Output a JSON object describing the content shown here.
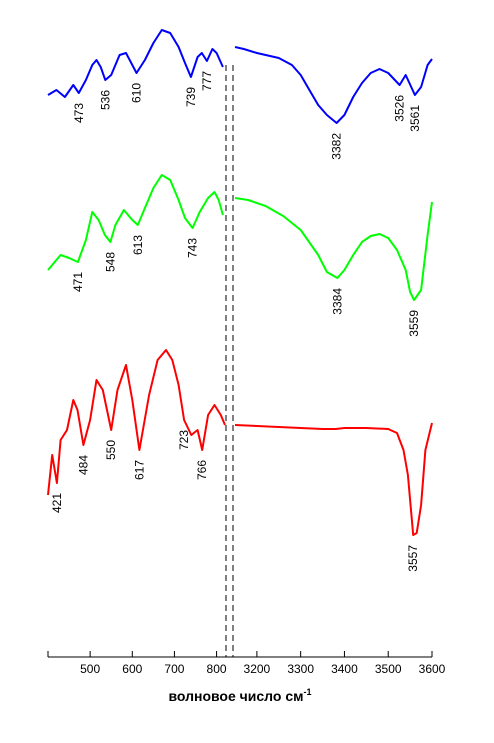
{
  "chart_data": {
    "type": "line",
    "xlabel": "волновое число см",
    "xlabel_superscript": "-1",
    "axis_break": "dashed",
    "grid": false,
    "legend": "none",
    "segments": [
      {
        "xlim": [
          400,
          820
        ],
        "ticks": [
          500,
          600,
          700,
          800
        ]
      },
      {
        "xlim": [
          3150,
          3600
        ],
        "ticks": [
          3200,
          3300,
          3400,
          3500,
          3600
        ]
      }
    ],
    "series": [
      {
        "color": "#0000ff",
        "points_low": [
          [
            400,
            0.4
          ],
          [
            420,
            0.45
          ],
          [
            440,
            0.38
          ],
          [
            460,
            0.5
          ],
          [
            473,
            0.42
          ],
          [
            490,
            0.55
          ],
          [
            505,
            0.7
          ],
          [
            515,
            0.75
          ],
          [
            525,
            0.68
          ],
          [
            536,
            0.55
          ],
          [
            550,
            0.6
          ],
          [
            570,
            0.8
          ],
          [
            585,
            0.82
          ],
          [
            600,
            0.7
          ],
          [
            610,
            0.62
          ],
          [
            630,
            0.75
          ],
          [
            650,
            0.92
          ],
          [
            670,
            1.05
          ],
          [
            690,
            1.02
          ],
          [
            710,
            0.88
          ],
          [
            725,
            0.72
          ],
          [
            739,
            0.58
          ],
          [
            755,
            0.78
          ],
          [
            765,
            0.82
          ],
          [
            777,
            0.74
          ],
          [
            790,
            0.86
          ],
          [
            800,
            0.82
          ],
          [
            815,
            0.68
          ]
        ],
        "points_high": [
          [
            3150,
            0.88
          ],
          [
            3170,
            0.86
          ],
          [
            3200,
            0.82
          ],
          [
            3250,
            0.77
          ],
          [
            3280,
            0.7
          ],
          [
            3300,
            0.6
          ],
          [
            3320,
            0.45
          ],
          [
            3340,
            0.3
          ],
          [
            3360,
            0.2
          ],
          [
            3382,
            0.12
          ],
          [
            3400,
            0.2
          ],
          [
            3420,
            0.38
          ],
          [
            3440,
            0.52
          ],
          [
            3460,
            0.62
          ],
          [
            3480,
            0.66
          ],
          [
            3500,
            0.62
          ],
          [
            3526,
            0.5
          ],
          [
            3540,
            0.6
          ],
          [
            3561,
            0.4
          ],
          [
            3575,
            0.48
          ],
          [
            3590,
            0.7
          ],
          [
            3600,
            0.76
          ]
        ],
        "peak_labels": [
          473,
          536,
          610,
          739,
          777,
          3382,
          3526,
          3561
        ]
      },
      {
        "color": "#00ff00",
        "points_low": [
          [
            400,
            0.1
          ],
          [
            430,
            0.25
          ],
          [
            450,
            0.22
          ],
          [
            471,
            0.18
          ],
          [
            490,
            0.4
          ],
          [
            505,
            0.68
          ],
          [
            520,
            0.6
          ],
          [
            535,
            0.45
          ],
          [
            548,
            0.38
          ],
          [
            560,
            0.55
          ],
          [
            580,
            0.7
          ],
          [
            600,
            0.6
          ],
          [
            613,
            0.55
          ],
          [
            630,
            0.72
          ],
          [
            650,
            0.92
          ],
          [
            670,
            1.05
          ],
          [
            690,
            1.0
          ],
          [
            710,
            0.8
          ],
          [
            725,
            0.62
          ],
          [
            743,
            0.52
          ],
          [
            760,
            0.68
          ],
          [
            780,
            0.82
          ],
          [
            795,
            0.88
          ],
          [
            805,
            0.8
          ],
          [
            815,
            0.65
          ]
        ],
        "points_high": [
          [
            3150,
            0.82
          ],
          [
            3180,
            0.8
          ],
          [
            3220,
            0.74
          ],
          [
            3260,
            0.64
          ],
          [
            3300,
            0.5
          ],
          [
            3340,
            0.25
          ],
          [
            3360,
            0.08
          ],
          [
            3384,
            0.02
          ],
          [
            3400,
            0.1
          ],
          [
            3420,
            0.25
          ],
          [
            3440,
            0.38
          ],
          [
            3460,
            0.44
          ],
          [
            3480,
            0.46
          ],
          [
            3500,
            0.42
          ],
          [
            3520,
            0.3
          ],
          [
            3540,
            0.1
          ],
          [
            3550,
            -0.12
          ],
          [
            3559,
            -0.2
          ],
          [
            3575,
            -0.1
          ],
          [
            3590,
            0.45
          ],
          [
            3600,
            0.78
          ]
        ],
        "peak_labels": [
          471,
          548,
          613,
          743,
          3384,
          3559
        ]
      },
      {
        "color": "#ff0000",
        "points_low": [
          [
            400,
            0.1
          ],
          [
            410,
            0.5
          ],
          [
            421,
            0.22
          ],
          [
            430,
            0.65
          ],
          [
            445,
            0.75
          ],
          [
            460,
            1.05
          ],
          [
            470,
            0.95
          ],
          [
            484,
            0.6
          ],
          [
            500,
            0.85
          ],
          [
            515,
            1.25
          ],
          [
            530,
            1.15
          ],
          [
            550,
            0.75
          ],
          [
            565,
            1.15
          ],
          [
            585,
            1.4
          ],
          [
            600,
            1.05
          ],
          [
            617,
            0.55
          ],
          [
            640,
            1.1
          ],
          [
            660,
            1.45
          ],
          [
            680,
            1.55
          ],
          [
            695,
            1.45
          ],
          [
            710,
            1.2
          ],
          [
            723,
            0.85
          ],
          [
            740,
            0.7
          ],
          [
            755,
            0.75
          ],
          [
            766,
            0.55
          ],
          [
            780,
            0.9
          ],
          [
            795,
            1.0
          ],
          [
            810,
            0.9
          ],
          [
            820,
            0.8
          ]
        ],
        "points_high": [
          [
            3150,
            0.8
          ],
          [
            3200,
            0.79
          ],
          [
            3250,
            0.78
          ],
          [
            3300,
            0.77
          ],
          [
            3350,
            0.76
          ],
          [
            3380,
            0.76
          ],
          [
            3400,
            0.77
          ],
          [
            3450,
            0.77
          ],
          [
            3500,
            0.76
          ],
          [
            3520,
            0.72
          ],
          [
            3535,
            0.55
          ],
          [
            3545,
            0.3
          ],
          [
            3557,
            -0.3
          ],
          [
            3565,
            -0.28
          ],
          [
            3575,
            0.0
          ],
          [
            3585,
            0.55
          ],
          [
            3600,
            0.82
          ]
        ],
        "peak_labels": [
          421,
          484,
          550,
          617,
          723,
          766,
          3557
        ]
      }
    ]
  }
}
